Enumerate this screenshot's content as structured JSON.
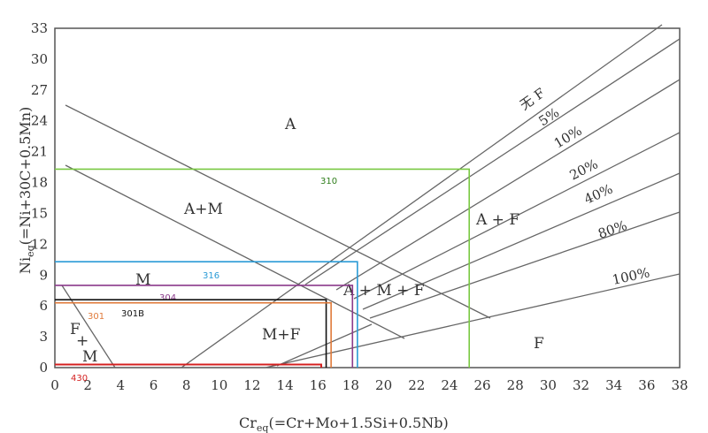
{
  "axes": {
    "x_title": {
      "main": "Cr",
      "sub": "eq",
      "rest": "(=Cr+Mo+1.5Si+0.5Nb)"
    },
    "y_title": {
      "main": "Ni",
      "sub": "eq",
      "rest": "(=Ni+30C+0.5Mn)"
    },
    "x_ticks": [
      "0",
      "2",
      "4",
      "6",
      "8",
      "10",
      "12",
      "14",
      "16",
      "18",
      "20",
      "22",
      "24",
      "26",
      "28",
      "30",
      "32",
      "34",
      "36",
      "38"
    ],
    "y_ticks": [
      "0",
      "3",
      "6",
      "9",
      "12",
      "15",
      "18",
      "21",
      "24",
      "27",
      "30",
      "33"
    ]
  },
  "regions": {
    "a": "A",
    "a_m": "A+M",
    "m": "M",
    "a_m_f": "A + M + F",
    "a_f": "A + F",
    "m_f": "M+F",
    "f_m_top": "F",
    "f_m_plus": "+",
    "f_m_bottom": "M",
    "f": "F"
  },
  "ferrite_lines": {
    "none": "无 F",
    "p5": "5%",
    "p10": "10%",
    "p20": "20%",
    "p40": "40%",
    "p80": "80%",
    "p100": "100%"
  },
  "grades": [
    {
      "label": "310",
      "cr": 25.2,
      "ni": 19.3,
      "color": "#7ac943",
      "text_color": "#2e7d1a"
    },
    {
      "label": "316",
      "cr": 18.4,
      "ni": 10.3,
      "color": "#2b9bd6",
      "text_color": "#2b9bd6"
    },
    {
      "label": "304",
      "cr": 18.1,
      "ni": 8.0,
      "color": "#8b3a8b",
      "text_color": "#8b3a8b"
    },
    {
      "label": "301B",
      "cr": 16.5,
      "ni": 6.6,
      "color": "#111111",
      "text_color": "#111111"
    },
    {
      "label": "301",
      "cr": 16.8,
      "ni": 6.3,
      "color": "#e07a3a",
      "text_color": "#e07a3a"
    },
    {
      "label": "430",
      "cr": 16.2,
      "ni": 0.3,
      "color": "#d42020",
      "text_color": "#d42020"
    }
  ]
}
